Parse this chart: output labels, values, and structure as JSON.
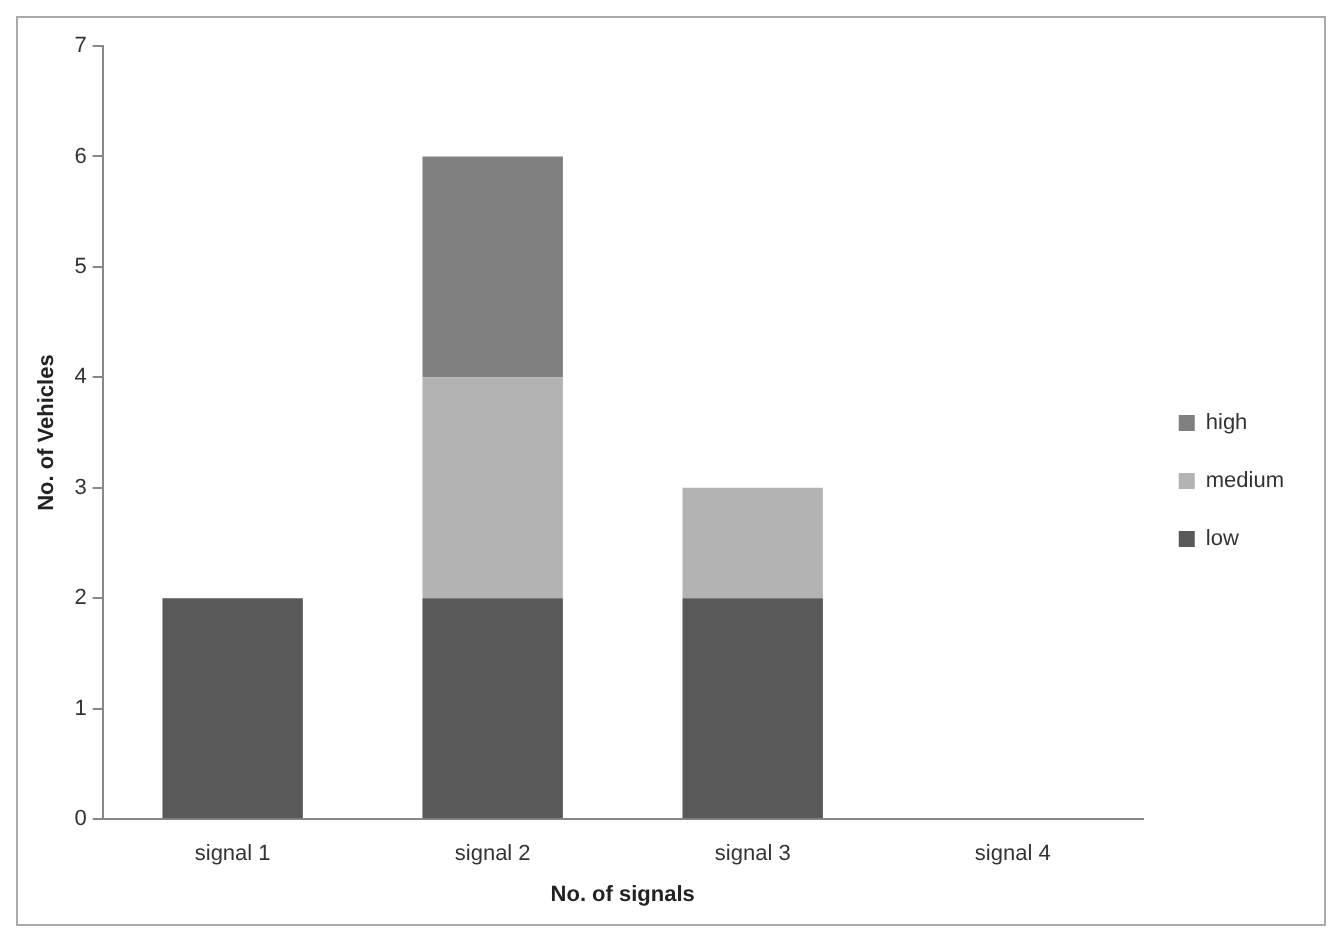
{
  "chart_data": {
    "type": "bar",
    "xlabel": "No. of signals",
    "ylabel": "No. of Vehicles",
    "categories": [
      "signal 1",
      "signal 2",
      "signal 3",
      "signal 4"
    ],
    "series": [
      {
        "name": "low",
        "color": "#595959",
        "values": [
          2,
          2,
          2,
          0
        ]
      },
      {
        "name": "medium",
        "color": "#b3b3b3",
        "values": [
          0,
          2,
          1,
          0
        ]
      },
      {
        "name": "high",
        "color": "#808080",
        "values": [
          0,
          2,
          0,
          0
        ]
      }
    ],
    "stacked": true,
    "ylim": [
      0,
      7
    ],
    "yticks": [
      0,
      1,
      2,
      3,
      4,
      5,
      6,
      7
    ],
    "grid": false,
    "legend": "right"
  }
}
